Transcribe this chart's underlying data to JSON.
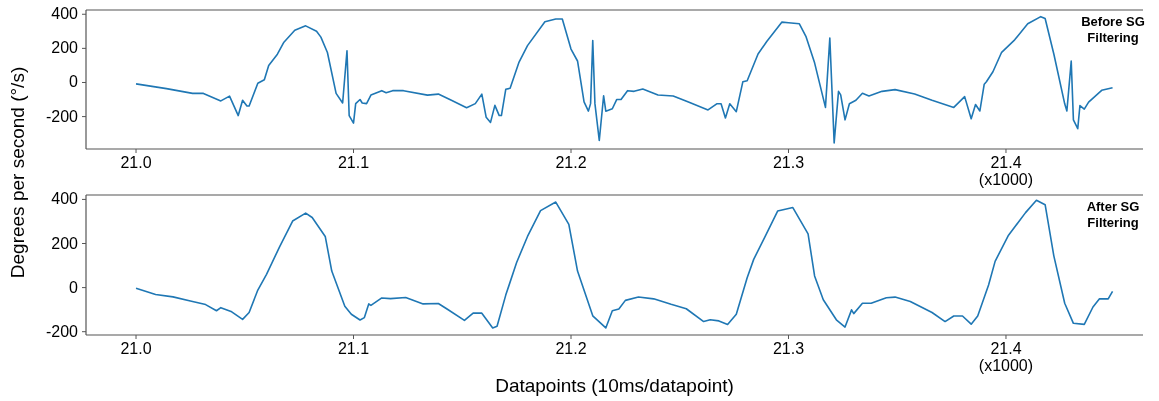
{
  "chart_data": [
    {
      "type": "line",
      "title": "Before SG Filtering",
      "ylabel": "Degrees per second (°/s)",
      "annotations": [
        "(x1000)"
      ],
      "xlim": [
        20.977,
        21.463
      ],
      "ylim": [
        -390,
        425
      ],
      "xticks": [
        {
          "value": 21,
          "label": "21.0"
        },
        {
          "value": 21.1,
          "label": "21.1"
        },
        {
          "value": 21.2,
          "label": "21.2"
        },
        {
          "value": 21.3,
          "label": "21.3"
        },
        {
          "value": 21.4,
          "label": "21.4"
        }
      ],
      "yticks": [
        -200,
        0,
        200,
        400
      ],
      "grid": false,
      "series": [
        {
          "color": "#1f77b4",
          "x": [
            21.0,
            21.014,
            21.026,
            21.031,
            21.039,
            21.043,
            21.047,
            21.049,
            21.051,
            21.052,
            21.056,
            21.059,
            21.061,
            21.065,
            21.068,
            21.073,
            21.078,
            21.083,
            21.085,
            21.088,
            21.092,
            21.095,
            21.097,
            21.098,
            21.1,
            21.101,
            21.103,
            21.104,
            21.106,
            21.108,
            21.113,
            21.115,
            21.118,
            21.123,
            21.134,
            21.139,
            21.145,
            21.152,
            21.156,
            21.159,
            21.161,
            21.163,
            21.165,
            21.167,
            21.168,
            21.17,
            21.172,
            21.176,
            21.18,
            21.188,
            21.193,
            21.196,
            21.2,
            21.203,
            21.206,
            21.208,
            21.209,
            21.21,
            21.211,
            21.213,
            21.215,
            21.216,
            21.219,
            21.221,
            21.223,
            21.226,
            21.229,
            21.233,
            21.24,
            21.247,
            21.254,
            21.263,
            21.267,
            21.269,
            21.271,
            21.273,
            21.276,
            21.279,
            21.281,
            21.286,
            21.29,
            21.297,
            21.3,
            21.305,
            21.308,
            21.312,
            21.317,
            21.319,
            21.321,
            21.323,
            21.324,
            21.326,
            21.328,
            21.331,
            21.334,
            21.337,
            21.343,
            21.349,
            21.358,
            21.366,
            21.376,
            21.381,
            21.384,
            21.386,
            21.388,
            21.39,
            21.391,
            21.394,
            21.398,
            21.404,
            21.41,
            21.416,
            21.418,
            21.422,
            21.427,
            21.428,
            21.43,
            21.431,
            21.433,
            21.434,
            21.436,
            21.438,
            21.444,
            21.449
          ],
          "values": [
            -8,
            -36,
            -64,
            -64,
            -108,
            -80,
            -194,
            -104,
            -138,
            -138,
            -4,
            16,
            100,
            166,
            236,
            306,
            332,
            300,
            266,
            176,
            -64,
            -120,
            186,
            -194,
            -238,
            -124,
            -100,
            -120,
            -124,
            -74,
            -48,
            -60,
            -48,
            -48,
            -74,
            -68,
            -104,
            -148,
            -124,
            -68,
            -204,
            -234,
            -134,
            -194,
            -194,
            -40,
            -34,
            116,
            216,
            356,
            372,
            372,
            196,
            126,
            -114,
            -168,
            -124,
            246,
            -124,
            -340,
            -78,
            -168,
            -154,
            -100,
            -100,
            -48,
            -52,
            -38,
            -73,
            -79,
            -115,
            -161,
            -125,
            -125,
            -208,
            -125,
            -171,
            4,
            10,
            167,
            240,
            354,
            350,
            344,
            271,
            115,
            -146,
            261,
            -354,
            -52,
            -73,
            -219,
            -125,
            -104,
            -63,
            -79,
            -52,
            -42,
            -67,
            -104,
            -146,
            -83,
            -213,
            -129,
            -167,
            -10,
            4,
            63,
            177,
            250,
            344,
            386,
            375,
            167,
            -125,
            -167,
            125,
            -219,
            -271,
            -135,
            -156,
            -115,
            -46,
            -31
          ]
        }
      ]
    },
    {
      "type": "line",
      "title": "After SG Filtering",
      "xlabel": "Datapoints (10ms/datapoint)",
      "annotations": [
        "(x1000)"
      ],
      "xlim": [
        20.977,
        21.463
      ],
      "ylim": [
        -215,
        420
      ],
      "xticks": [
        {
          "value": 21,
          "label": "21.0"
        },
        {
          "value": 21.1,
          "label": "21.1"
        },
        {
          "value": 21.2,
          "label": "21.2"
        },
        {
          "value": 21.3,
          "label": "21.3"
        },
        {
          "value": 21.4,
          "label": "21.4"
        }
      ],
      "yticks": [
        -200,
        0,
        200,
        400
      ],
      "grid": false,
      "series": [
        {
          "color": "#1f77b4",
          "x": [
            21.0,
            21.009,
            21.017,
            21.025,
            21.032,
            21.037,
            21.039,
            21.044,
            21.049,
            21.052,
            21.056,
            21.06,
            21.066,
            21.072,
            21.078,
            21.081,
            21.087,
            21.09,
            21.096,
            21.099,
            21.103,
            21.105,
            21.107,
            21.108,
            21.113,
            21.117,
            21.124,
            21.132,
            21.139,
            21.143,
            21.151,
            21.155,
            21.159,
            21.164,
            21.166,
            21.17,
            21.175,
            21.18,
            21.186,
            21.193,
            21.199,
            21.203,
            21.21,
            21.216,
            21.219,
            21.222,
            21.225,
            21.231,
            21.238,
            21.246,
            21.253,
            21.261,
            21.264,
            21.268,
            21.272,
            21.276,
            21.281,
            21.284,
            21.289,
            21.295,
            21.302,
            21.309,
            21.312,
            21.316,
            21.322,
            21.326,
            21.329,
            21.33,
            21.334,
            21.338,
            21.345,
            21.349,
            21.356,
            21.366,
            21.372,
            21.376,
            21.38,
            21.384,
            21.387,
            21.392,
            21.395,
            21.401,
            21.409,
            21.414,
            21.418,
            21.422,
            21.427,
            21.431,
            21.436,
            21.44,
            21.443,
            21.447,
            21.449
          ],
          "values": [
            -3,
            -31,
            -42,
            -61,
            -77,
            -105,
            -91,
            -110,
            -144,
            -113,
            -11,
            60,
            185,
            302,
            338,
            318,
            232,
            75,
            -85,
            -121,
            -147,
            -136,
            -74,
            -81,
            -47,
            -50,
            -45,
            -74,
            -72,
            -97,
            -149,
            -116,
            -116,
            -183,
            -175,
            -34,
            114,
            232,
            349,
            388,
            287,
            75,
            -128,
            -183,
            -105,
            -97,
            -58,
            -43,
            -51,
            -76,
            -96,
            -154,
            -146,
            -151,
            -167,
            -121,
            45,
            128,
            227,
            347,
            363,
            244,
            53,
            -55,
            -146,
            -179,
            -101,
            -118,
            -71,
            -71,
            -46,
            -43,
            -63,
            -113,
            -154,
            -129,
            -129,
            -166,
            -129,
            12,
            119,
            235,
            340,
            396,
            376,
            144,
            -71,
            -162,
            -167,
            -88,
            -51,
            -51,
            -17
          ]
        }
      ]
    }
  ]
}
